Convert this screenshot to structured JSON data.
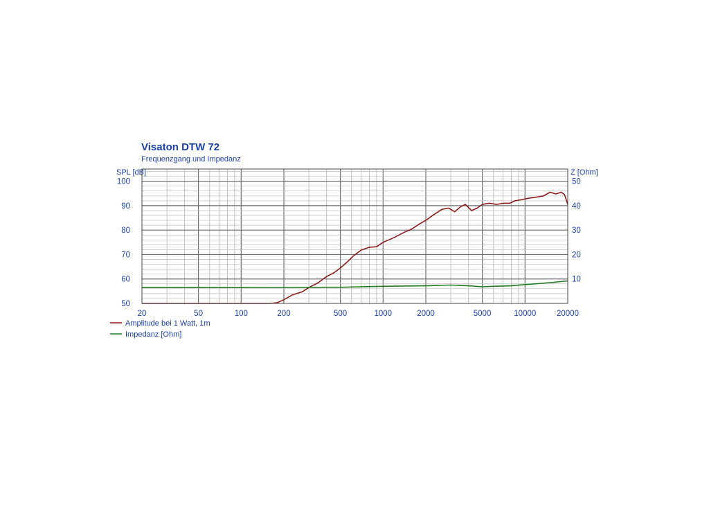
{
  "chart_data": {
    "type": "line",
    "title": "Visaton DTW 72",
    "subtitle": "Frequenzgang und Impedanz",
    "ylabel_left": "SPL [dB]",
    "ylabel_right": "Z [Ohm]",
    "xscale": "log",
    "xlim": [
      20,
      20000
    ],
    "ylim_left": [
      50,
      105
    ],
    "ylim_right": [
      0,
      55
    ],
    "grid": true,
    "legend_position": "bottom-left",
    "x_tick_labels": [
      "20",
      "50",
      "100",
      "200",
      "500",
      "1000",
      "2000",
      "5000",
      "10000",
      "20000"
    ],
    "x_tick_values": [
      20,
      50,
      100,
      200,
      500,
      1000,
      2000,
      5000,
      10000,
      20000
    ],
    "y_left_ticks": [
      50,
      60,
      70,
      80,
      90,
      100
    ],
    "y_right_ticks": [
      10,
      20,
      30,
      40,
      50
    ],
    "series": [
      {
        "name": "Amplitude bei 1 Watt, 1m",
        "axis": "left",
        "color": "#8b1a1a",
        "points": [
          [
            20,
            50
          ],
          [
            100,
            50
          ],
          [
            160,
            50
          ],
          [
            180,
            50.3
          ],
          [
            200,
            51.5
          ],
          [
            230,
            53.5
          ],
          [
            270,
            54.8
          ],
          [
            300,
            56.5
          ],
          [
            350,
            58.5
          ],
          [
            400,
            61
          ],
          [
            450,
            62.5
          ],
          [
            500,
            64.5
          ],
          [
            560,
            67
          ],
          [
            620,
            69.5
          ],
          [
            700,
            71.8
          ],
          [
            800,
            73
          ],
          [
            900,
            73.2
          ],
          [
            1000,
            75
          ],
          [
            1200,
            77
          ],
          [
            1400,
            79
          ],
          [
            1600,
            80.5
          ],
          [
            1800,
            82.5
          ],
          [
            2000,
            84
          ],
          [
            2300,
            86.5
          ],
          [
            2600,
            88.5
          ],
          [
            2900,
            89
          ],
          [
            3200,
            87.5
          ],
          [
            3500,
            89.5
          ],
          [
            3800,
            90.5
          ],
          [
            4200,
            88
          ],
          [
            4600,
            89
          ],
          [
            5000,
            90.5
          ],
          [
            5600,
            91
          ],
          [
            6300,
            90.5
          ],
          [
            7000,
            91
          ],
          [
            7800,
            91
          ],
          [
            8500,
            92
          ],
          [
            9500,
            92.5
          ],
          [
            10500,
            93
          ],
          [
            12000,
            93.5
          ],
          [
            13500,
            94
          ],
          [
            15000,
            95.5
          ],
          [
            16500,
            94.8
          ],
          [
            18000,
            95.5
          ],
          [
            19000,
            94.5
          ],
          [
            20000,
            90.5
          ]
        ]
      },
      {
        "name": "Impedanz [Ohm]",
        "axis": "right",
        "color": "#1f7a1f",
        "points": [
          [
            20,
            6.5
          ],
          [
            100,
            6.5
          ],
          [
            500,
            6.6
          ],
          [
            1000,
            7
          ],
          [
            2000,
            7.2
          ],
          [
            3000,
            7.5
          ],
          [
            4000,
            7.2
          ],
          [
            5000,
            6.8
          ],
          [
            6000,
            7
          ],
          [
            8000,
            7.2
          ],
          [
            10000,
            7.7
          ],
          [
            15000,
            8.5
          ],
          [
            20000,
            9.2
          ]
        ]
      }
    ]
  }
}
